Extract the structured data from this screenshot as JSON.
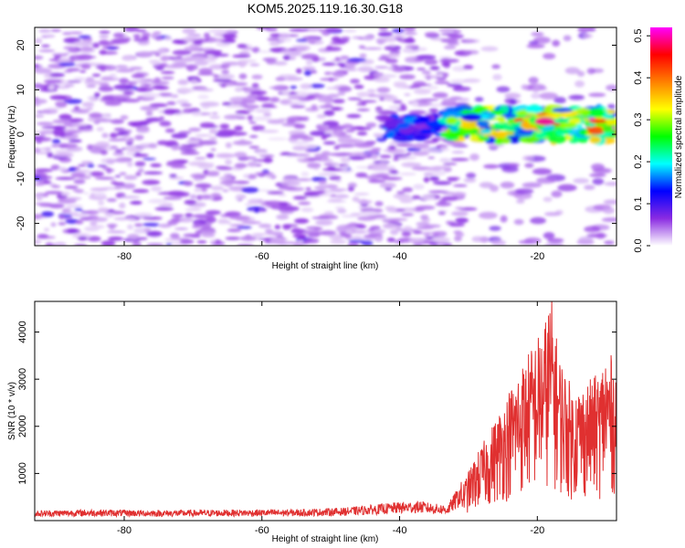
{
  "title": "KOM5.2025.119.16.30.G18",
  "chart_data": [
    {
      "type": "heatmap",
      "xlabel": "Height of straight line (km)",
      "ylabel": "Frequency (Hz)",
      "xlim": [
        -93,
        -8.5
      ],
      "ylim": [
        -25,
        24
      ],
      "x_ticks": [
        -80,
        -60,
        -40,
        -20
      ],
      "y_ticks": [
        -20,
        -10,
        0,
        10,
        20
      ],
      "colorbar": {
        "label": "Normalized spectral amplitude",
        "range": [
          0.0,
          0.52
        ],
        "ticks": [
          0.0,
          0.1,
          0.2,
          0.3,
          0.4,
          0.5
        ],
        "tick_labels": [
          "0.0",
          "0.1",
          "0.2",
          "0.3",
          "0.4",
          "0.5"
        ],
        "colors": [
          "#ffffff",
          "#8a2be2",
          "#0000ff",
          "#00ffff",
          "#00ff00",
          "#ffff00",
          "#ff8000",
          "#ff0000",
          "#ff00ff"
        ]
      },
      "regions": [
        {
          "x": [
            -93,
            -30
          ],
          "y": [
            -25,
            24
          ],
          "amplitude": 0.05
        },
        {
          "x": [
            -42,
            -34
          ],
          "y": [
            -1,
            4
          ],
          "amplitude": 0.14
        },
        {
          "x": [
            -33,
            -9
          ],
          "y": [
            -1.5,
            6
          ],
          "amplitude": 0.3
        },
        {
          "x": [
            -22,
            -18
          ],
          "y": [
            1.5,
            4
          ],
          "amplitude": 0.42
        },
        {
          "x": [
            -12,
            -9
          ],
          "y": [
            0,
            3
          ],
          "amplitude": 0.5
        }
      ]
    },
    {
      "type": "line",
      "xlabel": "Height of straight line (km)",
      "ylabel": "SNR (10 * v/v)",
      "xlim": [
        -93,
        -8.5
      ],
      "ylim": [
        0,
        4650
      ],
      "x_ticks": [
        -80,
        -60,
        -40,
        -20
      ],
      "y_ticks": [
        1000,
        2000,
        3000,
        4000
      ],
      "line_color": "#e03030",
      "series": [
        {
          "x": [
            -93,
            -85,
            -75,
            -65,
            -55,
            -48,
            -44,
            -40,
            -37,
            -35,
            -33,
            -31,
            -29,
            -27,
            -25,
            -23,
            -21,
            -19,
            -18,
            -17,
            -15,
            -13,
            -11,
            -10,
            -9,
            -8.5
          ],
          "values": [
            180,
            200,
            185,
            195,
            200,
            230,
            280,
            330,
            350,
            300,
            280,
            700,
            1300,
            1800,
            2400,
            3000,
            3500,
            4000,
            4650,
            3500,
            2700,
            2800,
            3000,
            3500,
            3300,
            3100
          ]
        }
      ]
    }
  ]
}
